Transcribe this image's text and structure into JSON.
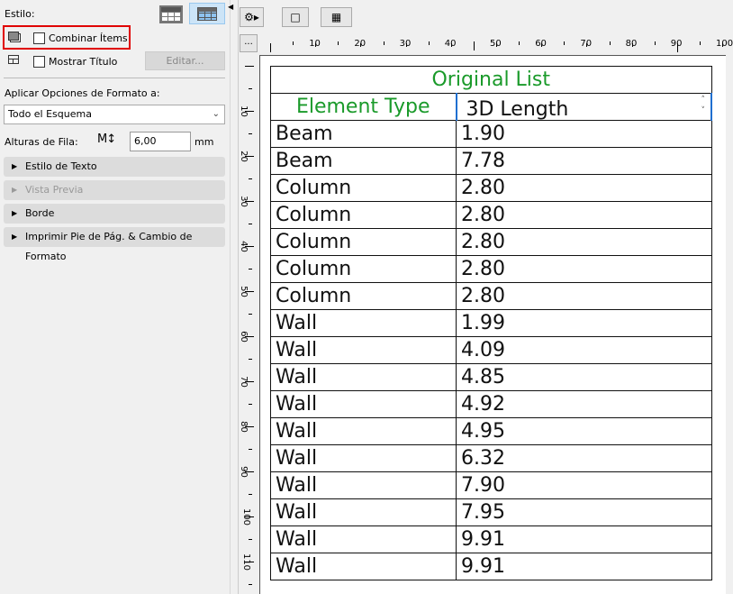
{
  "panel": {
    "style_label": "Estilo:",
    "combine_items": "Combinar Ítems",
    "show_title": "Mostrar Título",
    "edit_button": "Editar...",
    "apply_label": "Aplicar Opciones de Formato a:",
    "apply_value": "Todo el Esquema",
    "row_height_label": "Alturas de Fila:",
    "row_height_value": "6,00",
    "row_height_unit": "mm",
    "sections": [
      {
        "label": "Estilo de Texto",
        "enabled": true
      },
      {
        "label": "Vista Previa",
        "enabled": false
      },
      {
        "label": "Borde",
        "enabled": true
      },
      {
        "label": "Imprimir Pie de Pág. & Cambio de Formato",
        "enabled": true
      }
    ],
    "highlight_color": "#e00000"
  },
  "toolbar": {
    "more_label": "..."
  },
  "ruler": {
    "h": [
      "10",
      "20",
      "30",
      "40",
      "50",
      "60",
      "70",
      "80",
      "90",
      "100"
    ],
    "v": [
      "10",
      "20",
      "30",
      "40",
      "50",
      "60",
      "70",
      "80",
      "90",
      "100",
      "110"
    ]
  },
  "table": {
    "title": "Original List",
    "headers": [
      "Element Type",
      "3D Length"
    ],
    "header_color": "#1a9a2a",
    "rows": [
      [
        "Beam",
        "1.90"
      ],
      [
        "Beam",
        "7.78"
      ],
      [
        "Column",
        "2.80"
      ],
      [
        "Column",
        "2.80"
      ],
      [
        "Column",
        "2.80"
      ],
      [
        "Column",
        "2.80"
      ],
      [
        "Column",
        "2.80"
      ],
      [
        "Wall",
        "1.99"
      ],
      [
        "Wall",
        "4.09"
      ],
      [
        "Wall",
        "4.85"
      ],
      [
        "Wall",
        "4.92"
      ],
      [
        "Wall",
        "4.95"
      ],
      [
        "Wall",
        "6.32"
      ],
      [
        "Wall",
        "7.90"
      ],
      [
        "Wall",
        "7.95"
      ],
      [
        "Wall",
        "9.91"
      ],
      [
        "Wall",
        "9.91"
      ]
    ]
  }
}
